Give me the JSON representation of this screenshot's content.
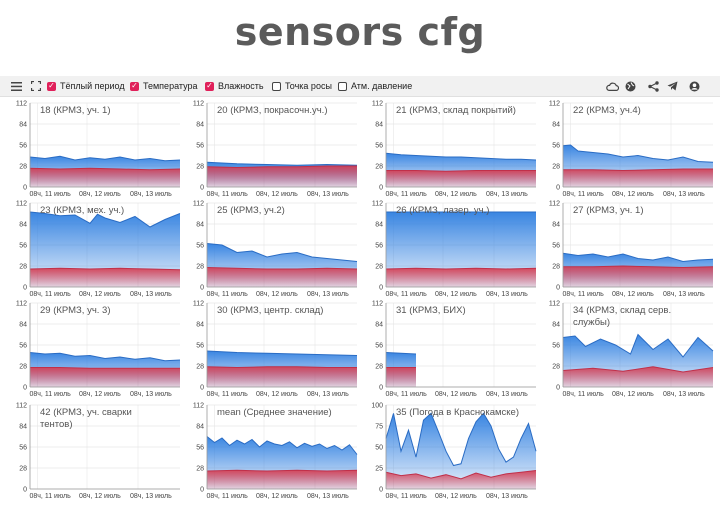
{
  "page_title": "sensors cfg",
  "toolbar": {
    "menu_icon": "menu-icon",
    "fullscreen_icon": "fullscreen-icon",
    "checkboxes": [
      {
        "label": "Тёплый период",
        "checked": true
      },
      {
        "label": "Температура",
        "checked": true
      },
      {
        "label": "Влажность",
        "checked": true
      },
      {
        "label": "Точка росы",
        "checked": false
      },
      {
        "label": "Атм. давление",
        "checked": false
      }
    ],
    "right_icons": [
      "cloud-icon",
      "globe-icon",
      "share-icon",
      "telegram-icon",
      "account-icon"
    ]
  },
  "colors": {
    "humidity": "#2f7fe0",
    "temperature": "#d83a4e",
    "accent": "#e0205a",
    "grid": "#e6e6e6"
  },
  "chart_data": [
    {
      "type": "area",
      "title": "18 (КРМЗ, уч. 1)",
      "yticks": [
        0,
        28,
        56,
        84,
        112
      ],
      "xticks": [
        "08ч, 11 июль",
        "08ч, 12 июль",
        "08ч, 13 июль"
      ],
      "x_extent": [
        0,
        1
      ],
      "series": [
        {
          "kind": "humidity",
          "x": [
            0,
            0.1,
            0.2,
            0.3,
            0.4,
            0.5,
            0.6,
            0.7,
            0.8,
            0.9,
            1
          ],
          "y": [
            40,
            38,
            41,
            36,
            39,
            37,
            40,
            36,
            38,
            35,
            36
          ]
        },
        {
          "kind": "temperature",
          "x": [
            0,
            0.2,
            0.4,
            0.6,
            0.8,
            1
          ],
          "y": [
            25,
            24,
            25,
            24,
            23,
            24
          ]
        }
      ]
    },
    {
      "type": "area",
      "title": "20 (КРМЗ, покрасочн.уч.)",
      "yticks": [
        0,
        28,
        56,
        84,
        112
      ],
      "xticks": [
        "08ч, 11 июль",
        "08ч, 12 июль",
        "08ч, 13 июль"
      ],
      "x_extent": [
        0,
        1
      ],
      "series": [
        {
          "kind": "humidity",
          "x": [
            0,
            0.2,
            0.4,
            0.6,
            0.8,
            1
          ],
          "y": [
            33,
            31,
            30,
            29,
            30,
            29
          ]
        },
        {
          "kind": "temperature",
          "x": [
            0,
            0.2,
            0.4,
            0.6,
            0.8,
            1
          ],
          "y": [
            27,
            26,
            27,
            27,
            28,
            28
          ]
        }
      ]
    },
    {
      "type": "area",
      "title": "21 (КРМЗ, склад покрытий)",
      "yticks": [
        0,
        28,
        56,
        84,
        112
      ],
      "xticks": [
        "08ч, 11 июль",
        "08ч, 12 июль",
        "08ч, 13 июль"
      ],
      "x_extent": [
        0,
        1
      ],
      "series": [
        {
          "kind": "humidity",
          "x": [
            0,
            0.1,
            0.2,
            0.3,
            0.4,
            0.5,
            0.6,
            0.7,
            0.8,
            0.9,
            1
          ],
          "y": [
            45,
            43,
            42,
            41,
            40,
            40,
            39,
            38,
            37,
            37,
            36
          ]
        },
        {
          "kind": "temperature",
          "x": [
            0,
            0.2,
            0.4,
            0.6,
            0.8,
            1
          ],
          "y": [
            22,
            22,
            21,
            22,
            22,
            22
          ]
        }
      ]
    },
    {
      "type": "area",
      "title": "22 (КРМЗ, уч.4)",
      "yticks": [
        0,
        28,
        56,
        84,
        112
      ],
      "xticks": [
        "08ч, 11 июль",
        "08ч, 12 июль",
        "08ч, 13 июль"
      ],
      "x_extent": [
        0,
        1
      ],
      "series": [
        {
          "kind": "humidity",
          "x": [
            0,
            0.05,
            0.1,
            0.2,
            0.3,
            0.4,
            0.5,
            0.6,
            0.7,
            0.8,
            0.9,
            1
          ],
          "y": [
            55,
            56,
            48,
            46,
            44,
            40,
            42,
            38,
            36,
            40,
            34,
            33
          ]
        },
        {
          "kind": "temperature",
          "x": [
            0,
            0.2,
            0.4,
            0.6,
            0.8,
            1
          ],
          "y": [
            23,
            23,
            22,
            23,
            24,
            24
          ]
        }
      ]
    },
    {
      "type": "area",
      "title": "23 (КРМЗ, мех. уч.)",
      "yticks": [
        0,
        28,
        56,
        84,
        112
      ],
      "xticks": [
        "08ч, 11 июль",
        "08ч, 12 июль",
        "08ч, 13 июль"
      ],
      "x_extent": [
        0,
        1
      ],
      "series": [
        {
          "kind": "humidity",
          "x": [
            0,
            0.1,
            0.2,
            0.3,
            0.4,
            0.45,
            0.5,
            0.6,
            0.7,
            0.8,
            0.9,
            1
          ],
          "y": [
            100,
            98,
            95,
            96,
            85,
            97,
            92,
            86,
            94,
            80,
            90,
            98
          ]
        },
        {
          "kind": "temperature",
          "x": [
            0,
            0.2,
            0.4,
            0.6,
            0.8,
            1
          ],
          "y": [
            24,
            25,
            24,
            25,
            24,
            23
          ]
        }
      ]
    },
    {
      "type": "area",
      "title": "25 (КРМЗ, уч.2)",
      "yticks": [
        0,
        28,
        56,
        84,
        112
      ],
      "xticks": [
        "08ч, 11 июль",
        "08ч, 12 июль",
        "08ч, 13 июль"
      ],
      "x_extent": [
        0,
        1
      ],
      "series": [
        {
          "kind": "humidity",
          "x": [
            0,
            0.1,
            0.2,
            0.3,
            0.4,
            0.5,
            0.6,
            0.7,
            0.8,
            0.9,
            1
          ],
          "y": [
            58,
            56,
            46,
            48,
            40,
            44,
            46,
            40,
            38,
            36,
            34
          ]
        },
        {
          "kind": "temperature",
          "x": [
            0,
            0.2,
            0.4,
            0.6,
            0.8,
            1
          ],
          "y": [
            26,
            25,
            24,
            24,
            25,
            24
          ]
        }
      ]
    },
    {
      "type": "area",
      "title": "26 (КРМЗ, лазер. уч.)",
      "yticks": [
        0,
        28,
        56,
        84,
        112
      ],
      "xticks": [
        "08ч, 11 июль",
        "08ч, 12 июль",
        "08ч, 13 июль"
      ],
      "x_extent": [
        0,
        1
      ],
      "series": [
        {
          "kind": "humidity",
          "x": [
            0,
            0.2,
            0.4,
            0.6,
            0.8,
            1
          ],
          "y": [
            100,
            100,
            100,
            100,
            100,
            100
          ]
        },
        {
          "kind": "temperature",
          "x": [
            0,
            0.2,
            0.4,
            0.6,
            0.8,
            1
          ],
          "y": [
            24,
            25,
            24,
            25,
            24,
            25
          ]
        }
      ]
    },
    {
      "type": "area",
      "title": "27 (КРМЗ, уч. 1)",
      "yticks": [
        0,
        28,
        56,
        84,
        112
      ],
      "xticks": [
        "08ч, 11 июль",
        "08ч, 12 июль",
        "08ч, 13 июль"
      ],
      "x_extent": [
        0,
        1
      ],
      "series": [
        {
          "kind": "humidity",
          "x": [
            0,
            0.1,
            0.2,
            0.3,
            0.4,
            0.5,
            0.6,
            0.7,
            0.8,
            0.9,
            1
          ],
          "y": [
            45,
            42,
            44,
            40,
            44,
            38,
            36,
            40,
            34,
            36,
            37
          ]
        },
        {
          "kind": "temperature",
          "x": [
            0,
            0.2,
            0.4,
            0.6,
            0.8,
            1
          ],
          "y": [
            27,
            27,
            28,
            27,
            26,
            27
          ]
        }
      ]
    },
    {
      "type": "area",
      "title": "29 (КРМЗ, уч. 3)",
      "yticks": [
        0,
        28,
        56,
        84,
        112
      ],
      "xticks": [
        "08ч, 11 июль",
        "08ч, 12 июль",
        "08ч, 13 июль"
      ],
      "x_extent": [
        0,
        1
      ],
      "series": [
        {
          "kind": "humidity",
          "x": [
            0,
            0.1,
            0.2,
            0.3,
            0.4,
            0.5,
            0.6,
            0.7,
            0.8,
            0.9,
            1
          ],
          "y": [
            46,
            44,
            45,
            41,
            42,
            38,
            40,
            37,
            39,
            35,
            36
          ]
        },
        {
          "kind": "temperature",
          "x": [
            0,
            0.2,
            0.4,
            0.6,
            0.8,
            1
          ],
          "y": [
            26,
            26,
            25,
            25,
            25,
            25
          ]
        }
      ]
    },
    {
      "type": "area",
      "title": "30 (КРМЗ, центр. склад)",
      "yticks": [
        0,
        28,
        56,
        84,
        112
      ],
      "xticks": [
        "08ч, 11 июль",
        "08ч, 12 июль",
        "08ч, 13 июль"
      ],
      "x_extent": [
        0,
        1
      ],
      "series": [
        {
          "kind": "humidity",
          "x": [
            0,
            0.2,
            0.4,
            0.6,
            0.8,
            1
          ],
          "y": [
            48,
            46,
            45,
            44,
            43,
            42
          ]
        },
        {
          "kind": "temperature",
          "x": [
            0,
            0.2,
            0.4,
            0.6,
            0.8,
            1
          ],
          "y": [
            27,
            26,
            27,
            27,
            26,
            26
          ]
        }
      ]
    },
    {
      "type": "area",
      "title": "31 (КРМЗ, БИХ)",
      "yticks": [
        0,
        28,
        56,
        84,
        112
      ],
      "xticks": [
        "08ч, 11 июль",
        "08ч, 12 июль",
        "08ч, 13 июль"
      ],
      "x_extent": [
        0,
        1
      ],
      "series": [
        {
          "kind": "humidity",
          "x": [
            0,
            0.1,
            0.2
          ],
          "y": [
            46,
            45,
            44
          ]
        },
        {
          "kind": "temperature",
          "x": [
            0,
            0.1,
            0.2
          ],
          "y": [
            26,
            26,
            26
          ]
        }
      ]
    },
    {
      "type": "area",
      "title": "34 (КРМЗ, склад серв. службы)",
      "yticks": [
        0,
        28,
        56,
        84,
        112
      ],
      "xticks": [
        "08ч, 11 июль",
        "08ч, 12 июль",
        "08ч, 13 июль"
      ],
      "x_extent": [
        0,
        1
      ],
      "series": [
        {
          "kind": "humidity",
          "x": [
            0,
            0.08,
            0.15,
            0.25,
            0.35,
            0.45,
            0.5,
            0.6,
            0.7,
            0.8,
            0.9,
            1
          ],
          "y": [
            66,
            68,
            54,
            64,
            56,
            44,
            70,
            50,
            64,
            40,
            66,
            48
          ]
        },
        {
          "kind": "temperature",
          "x": [
            0,
            0.2,
            0.4,
            0.6,
            0.8,
            1
          ],
          "y": [
            22,
            25,
            21,
            27,
            20,
            26
          ]
        }
      ]
    },
    {
      "type": "area",
      "title": "42 (КРМЗ, уч. сварки тентов)",
      "yticks": [
        0,
        28,
        56,
        84,
        112
      ],
      "xticks": [
        "08ч, 11 июль",
        "08ч, 12 июль",
        "08ч, 13 июль"
      ],
      "x_extent": [
        0,
        1
      ],
      "series": []
    },
    {
      "type": "area",
      "title": "mean (Среднее значение)",
      "yticks": [
        0,
        28,
        56,
        84,
        112
      ],
      "xticks": [
        "08ч, 11 июль",
        "08ч, 12 июль",
        "08ч, 13 июль"
      ],
      "x_extent": [
        0,
        1
      ],
      "series": [
        {
          "kind": "humidity",
          "x": [
            0,
            0.05,
            0.1,
            0.15,
            0.2,
            0.25,
            0.3,
            0.35,
            0.4,
            0.45,
            0.5,
            0.55,
            0.6,
            0.65,
            0.7,
            0.75,
            0.8,
            0.85,
            0.9,
            0.95,
            1
          ],
          "y": [
            70,
            62,
            68,
            58,
            65,
            60,
            66,
            56,
            64,
            60,
            58,
            63,
            55,
            61,
            57,
            60,
            54,
            58,
            52,
            59,
            46
          ]
        },
        {
          "kind": "temperature",
          "x": [
            0,
            0.2,
            0.4,
            0.6,
            0.8,
            1
          ],
          "y": [
            24,
            25,
            24,
            25,
            24,
            25
          ]
        }
      ]
    },
    {
      "type": "area",
      "title": "35 (Погода в Краснокамске)",
      "yticks": [
        0,
        25,
        50,
        75,
        100
      ],
      "xticks": [
        "08ч, 11 июль",
        "08ч, 12 июль",
        "08ч, 13 июль"
      ],
      "x_extent": [
        0,
        1
      ],
      "series": [
        {
          "kind": "humidity",
          "x": [
            0,
            0.05,
            0.1,
            0.15,
            0.2,
            0.25,
            0.3,
            0.35,
            0.4,
            0.45,
            0.5,
            0.55,
            0.6,
            0.65,
            0.7,
            0.75,
            0.8,
            0.85,
            0.9,
            0.95,
            1
          ],
          "y": [
            60,
            90,
            45,
            70,
            38,
            82,
            90,
            68,
            45,
            28,
            30,
            60,
            80,
            90,
            75,
            48,
            32,
            38,
            60,
            78,
            45
          ]
        },
        {
          "kind": "temperature",
          "x": [
            0,
            0.1,
            0.2,
            0.3,
            0.4,
            0.5,
            0.6,
            0.7,
            0.8,
            0.9,
            1
          ],
          "y": [
            20,
            16,
            18,
            13,
            17,
            12,
            19,
            14,
            18,
            20,
            22
          ]
        }
      ]
    }
  ]
}
